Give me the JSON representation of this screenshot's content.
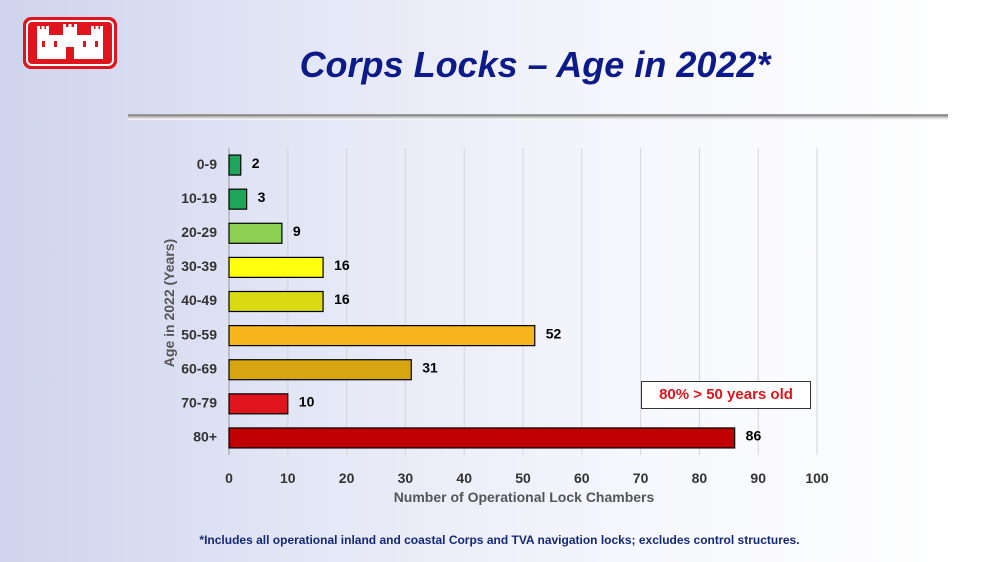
{
  "title": "Corps Locks – Age in 2022*",
  "footnote": "*Includes all operational inland and coastal Corps and TVA navigation locks; excludes control structures.",
  "callout": "80% > 50 years old",
  "logo_icon": "castle-icon",
  "colors": {
    "title": "#0d1a8a",
    "callout": "#e0141c",
    "logo": "#e0141c"
  },
  "chart_data": {
    "type": "bar",
    "orientation": "horizontal",
    "categories": [
      "0-9",
      "10-19",
      "20-29",
      "30-39",
      "40-49",
      "50-59",
      "60-69",
      "70-79",
      "80+"
    ],
    "values": [
      2,
      3,
      9,
      16,
      16,
      52,
      31,
      10,
      86
    ],
    "colors": [
      "#1fa65a",
      "#1fa65a",
      "#8dcf52",
      "#ffff10",
      "#d9d914",
      "#f6b51a",
      "#d6a612",
      "#e0141c",
      "#c00000"
    ],
    "xlabel": "Number of Operational Lock Chambers",
    "ylabel": "Age in 2022 (Years)",
    "xlim": [
      0,
      100
    ],
    "xticks": [
      0,
      10,
      20,
      30,
      40,
      50,
      60,
      70,
      80,
      90,
      100
    ],
    "grid": "vertical",
    "legend": "none"
  }
}
